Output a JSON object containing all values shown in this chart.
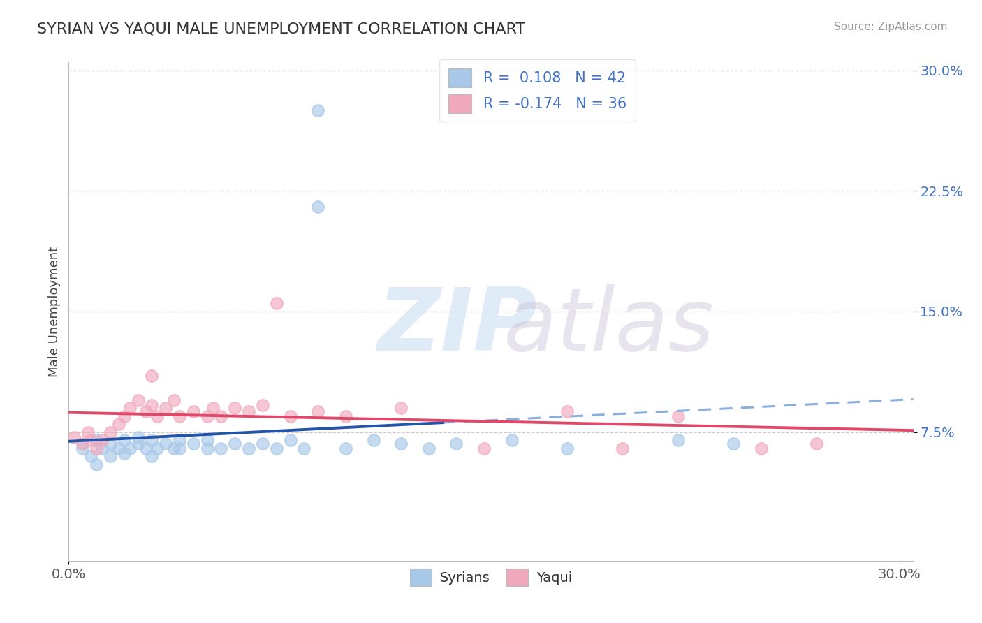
{
  "title": "SYRIAN VS YAQUI MALE UNEMPLOYMENT CORRELATION CHART",
  "source": "Source: ZipAtlas.com",
  "ylabel": "Male Unemployment",
  "xlim": [
    0.0,
    0.305
  ],
  "ylim": [
    -0.005,
    0.305
  ],
  "ytick_vals": [
    0.075,
    0.15,
    0.225,
    0.3
  ],
  "ytick_labels": [
    "7.5%",
    "15.0%",
    "22.5%",
    "30.0%"
  ],
  "xtick_vals": [
    0.0,
    0.3
  ],
  "xtick_labels": [
    "0.0%",
    "30.0%"
  ],
  "blue_color": "#A8C8E8",
  "pink_color": "#F0A8BC",
  "blue_line_color": "#2255AA",
  "pink_line_color": "#E04868",
  "dashed_color": "#8AAEE0",
  "bg_color": "#FFFFFF",
  "tick_color": "#4472C4",
  "legend_R1": "R =  0.108",
  "legend_N1": "N = 42",
  "legend_R2": "R = -0.174",
  "legend_N2": "N = 36",
  "syrians_x": [
    0.005,
    0.008,
    0.01,
    0.01,
    0.012,
    0.015,
    0.015,
    0.018,
    0.02,
    0.02,
    0.022,
    0.025,
    0.025,
    0.028,
    0.03,
    0.03,
    0.032,
    0.035,
    0.038,
    0.04,
    0.04,
    0.045,
    0.05,
    0.05,
    0.055,
    0.06,
    0.065,
    0.07,
    0.075,
    0.08,
    0.085,
    0.09,
    0.09,
    0.1,
    0.11,
    0.12,
    0.13,
    0.14,
    0.16,
    0.18,
    0.22,
    0.24
  ],
  "syrians_y": [
    0.065,
    0.06,
    0.055,
    0.07,
    0.065,
    0.06,
    0.068,
    0.065,
    0.062,
    0.07,
    0.065,
    0.068,
    0.072,
    0.065,
    0.06,
    0.07,
    0.065,
    0.068,
    0.065,
    0.07,
    0.065,
    0.068,
    0.065,
    0.07,
    0.065,
    0.068,
    0.065,
    0.068,
    0.065,
    0.07,
    0.065,
    0.275,
    0.215,
    0.065,
    0.07,
    0.068,
    0.065,
    0.068,
    0.07,
    0.065,
    0.07,
    0.068
  ],
  "yaqui_x": [
    0.002,
    0.005,
    0.007,
    0.008,
    0.01,
    0.012,
    0.015,
    0.018,
    0.02,
    0.022,
    0.025,
    0.028,
    0.03,
    0.03,
    0.032,
    0.035,
    0.038,
    0.04,
    0.045,
    0.05,
    0.052,
    0.055,
    0.06,
    0.065,
    0.07,
    0.075,
    0.08,
    0.09,
    0.1,
    0.12,
    0.15,
    0.18,
    0.2,
    0.22,
    0.25,
    0.27
  ],
  "yaqui_y": [
    0.072,
    0.068,
    0.075,
    0.07,
    0.065,
    0.07,
    0.075,
    0.08,
    0.085,
    0.09,
    0.095,
    0.088,
    0.092,
    0.11,
    0.085,
    0.09,
    0.095,
    0.085,
    0.088,
    0.085,
    0.09,
    0.085,
    0.09,
    0.088,
    0.092,
    0.155,
    0.085,
    0.088,
    0.085,
    0.09,
    0.065,
    0.088,
    0.065,
    0.085,
    0.065,
    0.068
  ]
}
